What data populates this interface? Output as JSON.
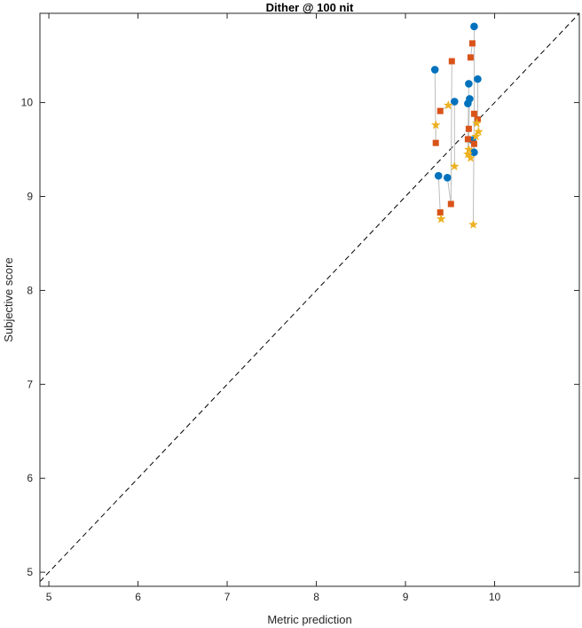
{
  "chart_data": {
    "type": "scatter",
    "title": "Dither @ 100 nit",
    "xlabel": "Metric prediction",
    "ylabel": "Subjective score",
    "xlim": [
      4.9,
      10.95
    ],
    "ylim": [
      4.85,
      10.95
    ],
    "xticks": [
      "5",
      "6",
      "7",
      "8",
      "9",
      "10"
    ],
    "yticks": [
      "5",
      "6",
      "7",
      "8",
      "9",
      "10"
    ],
    "grid": false,
    "reference_line": {
      "style": "dashed",
      "color": "#000000",
      "from": [
        4.9,
        4.9
      ],
      "to": [
        10.95,
        10.95
      ]
    },
    "connector_color": "#bdbdbd",
    "series": [
      {
        "marker": "circle",
        "color": "#0072BD",
        "points": [
          [
            9.77,
            10.81
          ],
          [
            9.33,
            10.35
          ],
          [
            9.81,
            10.25
          ],
          [
            9.71,
            10.2
          ],
          [
            9.55,
            10.01
          ],
          [
            9.72,
            10.04
          ],
          [
            9.7,
            9.99
          ],
          [
            9.37,
            9.22
          ],
          [
            9.47,
            9.2
          ],
          [
            9.77,
            9.47
          ],
          [
            9.75,
            9.6
          ]
        ]
      },
      {
        "marker": "square",
        "color": "#D95319",
        "points": [
          [
            9.75,
            10.63
          ],
          [
            9.73,
            10.48
          ],
          [
            9.52,
            10.44
          ],
          [
            9.39,
            9.91
          ],
          [
            9.77,
            9.88
          ],
          [
            9.81,
            9.82
          ],
          [
            9.71,
            9.72
          ],
          [
            9.7,
            9.61
          ],
          [
            9.34,
            9.57
          ],
          [
            9.77,
            9.56
          ],
          [
            9.51,
            8.92
          ],
          [
            9.39,
            8.83
          ]
        ]
      },
      {
        "marker": "star",
        "color": "#EDB120",
        "points": [
          [
            9.48,
            9.97
          ],
          [
            9.8,
            9.78
          ],
          [
            9.34,
            9.76
          ],
          [
            9.82,
            9.69
          ],
          [
            9.79,
            9.64
          ],
          [
            9.71,
            9.5
          ],
          [
            9.7,
            9.45
          ],
          [
            9.73,
            9.41
          ],
          [
            9.55,
            9.32
          ],
          [
            9.4,
            8.76
          ],
          [
            9.76,
            8.7
          ]
        ]
      }
    ],
    "connections": [
      [
        [
          9.33,
          10.35
        ],
        [
          9.34,
          9.57
        ],
        [
          9.34,
          9.76
        ]
      ],
      [
        [
          9.37,
          9.22
        ],
        [
          9.39,
          8.83
        ],
        [
          9.4,
          8.76
        ]
      ],
      [
        [
          9.47,
          9.2
        ],
        [
          9.51,
          8.92
        ],
        [
          9.52,
          10.44
        ]
      ],
      [
        [
          9.55,
          10.01
        ],
        [
          9.55,
          9.32
        ]
      ],
      [
        [
          9.48,
          9.97
        ],
        [
          9.39,
          9.91
        ]
      ],
      [
        [
          9.72,
          10.04
        ],
        [
          9.71,
          9.72
        ],
        [
          9.71,
          9.5
        ]
      ],
      [
        [
          9.71,
          10.2
        ],
        [
          9.7,
          9.61
        ],
        [
          9.7,
          9.45
        ]
      ],
      [
        [
          9.75,
          10.63
        ],
        [
          9.73,
          10.48
        ]
      ],
      [
        [
          9.77,
          10.81
        ],
        [
          9.77,
          9.88
        ],
        [
          9.76,
          8.7
        ]
      ],
      [
        [
          9.81,
          10.25
        ],
        [
          9.81,
          9.82
        ],
        [
          9.82,
          9.69
        ]
      ],
      [
        [
          9.77,
          9.47
        ],
        [
          9.77,
          9.56
        ],
        [
          9.79,
          9.64
        ]
      ],
      [
        [
          9.75,
          9.6
        ],
        [
          9.73,
          9.41
        ]
      ]
    ]
  }
}
